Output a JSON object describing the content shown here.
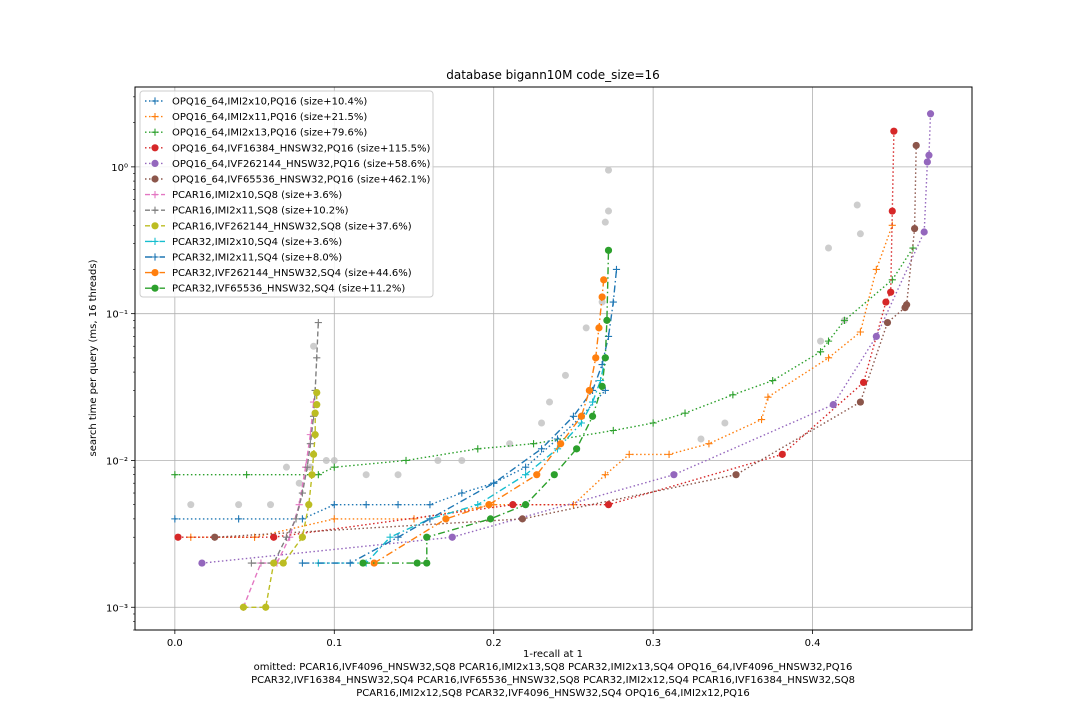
{
  "chart_data": {
    "type": "line",
    "title": "database bigann10M code_size=16",
    "xlabel": "1-recall at 1",
    "ylabel": "search time per query (ms, 16 threads)",
    "xscale": "linear",
    "yscale": "log",
    "xlim": [
      -0.025,
      0.5
    ],
    "ylim": [
      0.0007,
      3.5
    ],
    "xticks": [
      0.0,
      0.1,
      0.2,
      0.3,
      0.4
    ],
    "xtick_labels": [
      "0.0",
      "0.1",
      "0.2",
      "0.3",
      "0.4"
    ],
    "yticks": [
      0.001,
      0.01,
      0.1,
      1
    ],
    "ytick_labels": [
      "10⁻³",
      "10⁻²",
      "10⁻¹",
      "10⁰"
    ],
    "grid": true,
    "legend_position": "upper-left",
    "series": [
      {
        "name": "OPQ16_64,IMI2x10,PQ16 (size+10.4%)",
        "color": "#1f77b4",
        "marker": "+",
        "linestyle": "dotted",
        "x": [
          0.0,
          0.04,
          0.08,
          0.1,
          0.12,
          0.14,
          0.16,
          0.18,
          0.2,
          0.22,
          0.24,
          0.255,
          0.27
        ],
        "y": [
          0.004,
          0.004,
          0.004,
          0.005,
          0.005,
          0.005,
          0.005,
          0.006,
          0.007,
          0.009,
          0.014,
          0.02,
          0.03
        ]
      },
      {
        "name": "OPQ16_64,IMI2x11,PQ16 (size+21.5%)",
        "color": "#ff7f0e",
        "marker": "+",
        "linestyle": "dotted",
        "x": [
          0.01,
          0.05,
          0.1,
          0.15,
          0.2,
          0.25,
          0.27,
          0.285,
          0.31,
          0.335,
          0.368,
          0.372,
          0.41,
          0.43,
          0.44,
          0.45
        ],
        "y": [
          0.003,
          0.003,
          0.004,
          0.004,
          0.005,
          0.005,
          0.008,
          0.011,
          0.011,
          0.013,
          0.019,
          0.027,
          0.05,
          0.075,
          0.2,
          0.4
        ]
      },
      {
        "name": "OPQ16_64,IMI2x13,PQ16 (size+79.6%)",
        "color": "#2ca02c",
        "marker": "+",
        "linestyle": "dotted",
        "x": [
          0.0,
          0.045,
          0.09,
          0.1,
          0.145,
          0.19,
          0.225,
          0.275,
          0.3,
          0.32,
          0.35,
          0.375,
          0.405,
          0.41,
          0.42,
          0.45,
          0.463
        ],
        "y": [
          0.008,
          0.008,
          0.008,
          0.009,
          0.01,
          0.012,
          0.013,
          0.016,
          0.018,
          0.021,
          0.028,
          0.035,
          0.055,
          0.065,
          0.09,
          0.17,
          0.28
        ]
      },
      {
        "name": "OPQ16_64,IVF16384_HNSW32,PQ16 (size+115.5%)",
        "color": "#d62728",
        "marker": "o",
        "linestyle": "dotted",
        "x": [
          0.002,
          0.062,
          0.212,
          0.272,
          0.381,
          0.432,
          0.446,
          0.449,
          0.45,
          0.451
        ],
        "y": [
          0.003,
          0.003,
          0.005,
          0.005,
          0.011,
          0.034,
          0.12,
          0.14,
          0.5,
          1.75
        ]
      },
      {
        "name": "OPQ16_64,IVF262144_HNSW32,PQ16 (size+58.6%)",
        "color": "#9467bd",
        "marker": "o",
        "linestyle": "dotted",
        "x": [
          0.017,
          0.174,
          0.313,
          0.413,
          0.44,
          0.47,
          0.472,
          0.473,
          0.474
        ],
        "y": [
          0.002,
          0.003,
          0.008,
          0.024,
          0.07,
          0.36,
          1.08,
          1.2,
          2.3
        ]
      },
      {
        "name": "OPQ16_64,IVF65536_HNSW32,PQ16 (size+462.1%)",
        "color": "#8c564b",
        "marker": "o",
        "linestyle": "dotted",
        "x": [
          0.025,
          0.218,
          0.352,
          0.43,
          0.447,
          0.458,
          0.459,
          0.464,
          0.465
        ],
        "y": [
          0.003,
          0.004,
          0.008,
          0.025,
          0.087,
          0.11,
          0.115,
          0.38,
          1.4
        ]
      },
      {
        "name": "PCAR16,IMI2x10,SQ8 (size+3.6%)",
        "color": "#e377c2",
        "marker": "+",
        "linestyle": "dashed",
        "x": [
          0.043,
          0.054,
          0.064,
          0.072,
          0.078,
          0.082,
          0.085,
          0.087
        ],
        "y": [
          0.001,
          0.002,
          0.002,
          0.003,
          0.005,
          0.009,
          0.015,
          0.025
        ]
      },
      {
        "name": "PCAR16,IMI2x11,SQ8 (size+10.2%)",
        "color": "#7f7f7f",
        "marker": "+",
        "linestyle": "dashed",
        "x": [
          0.048,
          0.062,
          0.07,
          0.076,
          0.08,
          0.083,
          0.085,
          0.087,
          0.088,
          0.089,
          0.09
        ],
        "y": [
          0.002,
          0.002,
          0.003,
          0.004,
          0.006,
          0.009,
          0.013,
          0.02,
          0.03,
          0.05,
          0.087
        ]
      },
      {
        "name": "PCAR16,IVF262144_HNSW32,SQ8 (size+37.6%)",
        "color": "#bcbd22",
        "marker": "o",
        "linestyle": "dashed",
        "x": [
          0.043,
          0.057,
          0.062,
          0.068,
          0.08,
          0.084,
          0.086,
          0.087,
          0.088,
          0.088,
          0.089,
          0.089
        ],
        "y": [
          0.001,
          0.001,
          0.002,
          0.002,
          0.003,
          0.005,
          0.008,
          0.011,
          0.015,
          0.021,
          0.024,
          0.029
        ]
      },
      {
        "name": "PCAR32,IMI2x10,SQ4 (size+3.6%)",
        "color": "#17becf",
        "marker": "+",
        "linestyle": "dashdot",
        "x": [
          0.09,
          0.12,
          0.135,
          0.16,
          0.19,
          0.22,
          0.24,
          0.255,
          0.262,
          0.267,
          0.27
        ],
        "y": [
          0.002,
          0.002,
          0.003,
          0.004,
          0.005,
          0.008,
          0.012,
          0.018,
          0.025,
          0.035,
          0.05
        ]
      },
      {
        "name": "PCAR32,IMI2x11,SQ4 (size+8.0%)",
        "color": "#1f77b4",
        "marker": "+",
        "linestyle": "dashdot",
        "x": [
          0.08,
          0.11,
          0.14,
          0.16,
          0.2,
          0.23,
          0.25,
          0.262,
          0.268,
          0.272,
          0.275,
          0.277
        ],
        "y": [
          0.002,
          0.002,
          0.003,
          0.004,
          0.007,
          0.012,
          0.02,
          0.03,
          0.045,
          0.07,
          0.12,
          0.2
        ]
      },
      {
        "name": "PCAR32,IVF262144_HNSW32,SQ4 (size+44.6%)",
        "color": "#ff7f0e",
        "marker": "o",
        "linestyle": "dashdot",
        "x": [
          0.125,
          0.17,
          0.197,
          0.227,
          0.242,
          0.255,
          0.26,
          0.264,
          0.266,
          0.268,
          0.269
        ],
        "y": [
          0.002,
          0.004,
          0.005,
          0.008,
          0.013,
          0.02,
          0.03,
          0.05,
          0.08,
          0.13,
          0.17
        ]
      },
      {
        "name": "PCAR32,IVF65536_HNSW32,SQ4 (size+11.2%)",
        "color": "#2ca02c",
        "marker": "o",
        "linestyle": "dashdot",
        "x": [
          0.118,
          0.152,
          0.158,
          0.158,
          0.198,
          0.22,
          0.238,
          0.252,
          0.262,
          0.268,
          0.27,
          0.271,
          0.272
        ],
        "y": [
          0.002,
          0.002,
          0.002,
          0.003,
          0.004,
          0.005,
          0.008,
          0.012,
          0.02,
          0.032,
          0.05,
          0.09,
          0.27
        ]
      }
    ],
    "omitted_series": {
      "color": "#c0c0c0",
      "points": [
        [
          0.01,
          0.005
        ],
        [
          0.04,
          0.005
        ],
        [
          0.07,
          0.009
        ],
        [
          0.085,
          0.009
        ],
        [
          0.1,
          0.01
        ],
        [
          0.12,
          0.008
        ],
        [
          0.165,
          0.01
        ],
        [
          0.18,
          0.01
        ],
        [
          0.21,
          0.013
        ],
        [
          0.23,
          0.018
        ],
        [
          0.235,
          0.025
        ],
        [
          0.245,
          0.038
        ],
        [
          0.258,
          0.08
        ],
        [
          0.268,
          0.12
        ],
        [
          0.27,
          0.42
        ],
        [
          0.272,
          0.5
        ],
        [
          0.272,
          0.95
        ],
        [
          0.33,
          0.014
        ],
        [
          0.345,
          0.018
        ],
        [
          0.42,
          0.09
        ],
        [
          0.428,
          0.55
        ],
        [
          0.43,
          0.35
        ],
        [
          0.405,
          0.065
        ],
        [
          0.41,
          0.28
        ],
        [
          0.087,
          0.06
        ],
        [
          0.078,
          0.007
        ],
        [
          0.06,
          0.005
        ],
        [
          0.095,
          0.01
        ],
        [
          0.14,
          0.008
        ]
      ]
    },
    "omitted_note_lines": [
      "omitted: PCAR16,IVF4096_HNSW32,SQ8 PCAR16,IMI2x13,SQ8 PCAR32,IMI2x13,SQ4 OPQ16_64,IVF4096_HNSW32,PQ16",
      "PCAR32,IVF16384_HNSW32,SQ4 PCAR16,IVF65536_HNSW32,SQ8 PCAR32,IMI2x12,SQ4 PCAR16,IVF16384_HNSW32,SQ8",
      "PCAR16,IMI2x12,SQ8 PCAR32,IVF4096_HNSW32,SQ4 OPQ16_64,IMI2x12,PQ16"
    ]
  }
}
